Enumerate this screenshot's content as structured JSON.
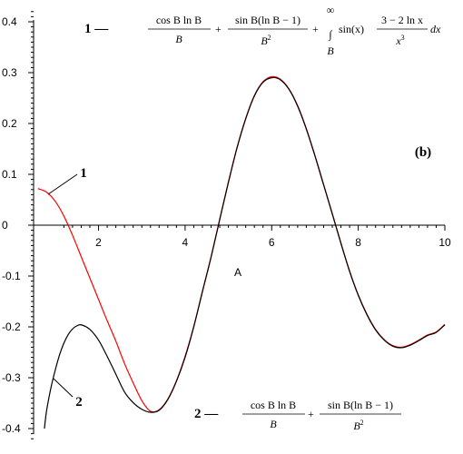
{
  "chart_data": {
    "type": "line",
    "xlabel": "A",
    "x_ticks": [
      "2",
      "4",
      "6",
      "8",
      "10"
    ],
    "y_ticks": [
      "0.4",
      "0.3",
      "0.2",
      "0.1",
      "0",
      "-0.1",
      "-0.2",
      "-0.3",
      "-0.4"
    ],
    "xlim": [
      0.5,
      10
    ],
    "ylim": [
      -0.42,
      0.42
    ],
    "panel_label": "(b)",
    "series": [
      {
        "name": "1",
        "color": "#ff0000",
        "x": [
          0.6,
          0.8,
          1.0,
          1.2,
          1.4,
          1.6,
          1.8,
          2.0,
          2.2,
          2.4,
          2.6,
          2.8,
          3.0,
          3.2,
          3.4,
          3.6,
          3.8,
          4.0,
          4.2,
          4.4,
          4.6,
          4.8,
          5.0,
          5.2,
          5.4,
          5.6,
          5.8,
          6.0,
          6.2,
          6.4,
          6.6,
          6.8,
          7.0,
          7.2,
          7.4,
          7.6,
          7.8,
          8.0,
          8.2,
          8.4,
          8.6,
          8.8,
          9.0,
          9.2,
          9.4,
          9.6,
          9.8,
          10.0
        ],
        "values": [
          0.072,
          0.065,
          0.047,
          0.018,
          -0.02,
          -0.062,
          -0.104,
          -0.146,
          -0.188,
          -0.228,
          -0.272,
          -0.31,
          -0.345,
          -0.366,
          -0.363,
          -0.342,
          -0.306,
          -0.258,
          -0.199,
          -0.13,
          -0.062,
          0.012,
          0.085,
          0.153,
          0.21,
          0.255,
          0.282,
          0.292,
          0.287,
          0.268,
          0.235,
          0.19,
          0.137,
          0.08,
          0.023,
          -0.035,
          -0.09,
          -0.137,
          -0.175,
          -0.205,
          -0.225,
          -0.237,
          -0.24,
          -0.235,
          -0.226,
          -0.216,
          -0.21,
          -0.195
        ]
      },
      {
        "name": "2",
        "color": "#000000",
        "x": [
          0.75,
          0.8,
          0.9,
          1.0,
          1.1,
          1.2,
          1.3,
          1.4,
          1.5,
          1.6,
          1.8,
          2.0,
          2.2,
          2.4,
          2.6,
          2.8,
          3.0,
          3.2,
          3.4,
          3.6,
          3.8,
          4.0,
          4.2,
          4.4,
          4.6,
          4.8,
          5.0,
          5.2,
          5.4,
          5.6,
          5.8,
          6.0,
          6.2,
          6.4,
          6.6,
          6.8,
          7.0,
          7.2,
          7.4,
          7.6,
          7.8,
          8.0,
          8.2,
          8.4,
          8.6,
          8.8,
          9.0,
          9.2,
          9.4,
          9.6,
          9.8,
          10.0
        ],
        "values": [
          -0.4,
          -0.365,
          -0.32,
          -0.285,
          -0.255,
          -0.232,
          -0.215,
          -0.204,
          -0.198,
          -0.196,
          -0.205,
          -0.226,
          -0.258,
          -0.293,
          -0.328,
          -0.349,
          -0.362,
          -0.368,
          -0.364,
          -0.343,
          -0.307,
          -0.26,
          -0.2,
          -0.131,
          -0.063,
          0.011,
          0.084,
          0.152,
          0.209,
          0.254,
          0.281,
          0.29,
          0.286,
          0.267,
          0.234,
          0.189,
          0.136,
          0.079,
          0.022,
          -0.036,
          -0.091,
          -0.138,
          -0.176,
          -0.206,
          -0.226,
          -0.238,
          -0.241,
          -0.236,
          -0.227,
          -0.217,
          -0.211,
          -0.196
        ]
      }
    ]
  },
  "legend": {
    "curve1_label": "1 —",
    "curve2_label": "2 —"
  },
  "formula1": {
    "t1_num": "cos B ln B",
    "t1_den": "B",
    "plus1": "+",
    "t2_num": "sin B(ln B − 1)",
    "t2_den": "B",
    "t2_den_exp": "2",
    "plus2": "+",
    "int_upper": "∞",
    "int_sign": "∫",
    "int_lower": "B",
    "integrand": "sin(x)",
    "t3_num": "3 − 2 ln x",
    "t3_den": "x",
    "t3_den_exp": "3",
    "dx": "dx"
  },
  "formula2": {
    "t1_num": "cos B ln B",
    "t1_den": "B",
    "plus1": "+",
    "t2_num": "sin B(ln B − 1)",
    "t2_den": "B",
    "t2_den_exp": "2"
  },
  "curve_annotations": {
    "label1": "1",
    "label2": "2"
  }
}
